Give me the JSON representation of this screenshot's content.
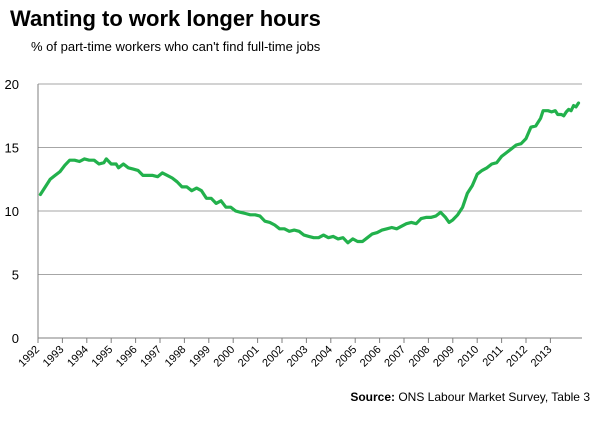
{
  "title": "Wanting to work longer hours",
  "subtitle": "% of part-time workers  who can't find full-time jobs",
  "source": {
    "label": "Source:",
    "text": "ONS Labour Market Survey, Table 3"
  },
  "colors": {
    "line": "#22b14c",
    "grid": "#a6a6a6",
    "axis": "#7f7f7f"
  },
  "chart_data": {
    "type": "line",
    "title": "Wanting to work longer hours",
    "subtitle": "% of part-time workers  who can't find full-time jobs",
    "xlabel": "",
    "ylabel": "",
    "ylim": [
      0,
      20
    ],
    "yticks": [
      0,
      5,
      10,
      15,
      20
    ],
    "xlim": [
      1992,
      2013.7
    ],
    "xticks": [
      "1992",
      "1993",
      "1994",
      "1995",
      "1996",
      "1997",
      "1998",
      "1999",
      "2000",
      "2001",
      "2002",
      "2003",
      "2004",
      "2005",
      "2006",
      "2007",
      "2008",
      "2009",
      "2010",
      "2011",
      "2012",
      "2013"
    ],
    "grid": true,
    "legend": "none",
    "series": [
      {
        "points": [
          [
            1992.1,
            11.3
          ],
          [
            1992.3,
            11.9
          ],
          [
            1992.5,
            12.5
          ],
          [
            1992.7,
            12.8
          ],
          [
            1992.9,
            13.1
          ],
          [
            1993.1,
            13.6
          ],
          [
            1993.3,
            14.0
          ],
          [
            1993.5,
            14.0
          ],
          [
            1993.7,
            13.9
          ],
          [
            1993.9,
            14.1
          ],
          [
            1994.1,
            14.0
          ],
          [
            1994.3,
            14.0
          ],
          [
            1994.5,
            13.7
          ],
          [
            1994.7,
            13.8
          ],
          [
            1994.8,
            14.1
          ],
          [
            1995.0,
            13.7
          ],
          [
            1995.2,
            13.7
          ],
          [
            1995.3,
            13.4
          ],
          [
            1995.5,
            13.7
          ],
          [
            1995.7,
            13.4
          ],
          [
            1995.9,
            13.3
          ],
          [
            1996.1,
            13.2
          ],
          [
            1996.3,
            12.8
          ],
          [
            1996.5,
            12.8
          ],
          [
            1996.7,
            12.8
          ],
          [
            1996.9,
            12.7
          ],
          [
            1997.1,
            13.0
          ],
          [
            1997.3,
            12.8
          ],
          [
            1997.5,
            12.6
          ],
          [
            1997.7,
            12.3
          ],
          [
            1997.9,
            11.9
          ],
          [
            1998.1,
            11.9
          ],
          [
            1998.3,
            11.6
          ],
          [
            1998.5,
            11.8
          ],
          [
            1998.7,
            11.6
          ],
          [
            1998.9,
            11.0
          ],
          [
            1999.1,
            11.0
          ],
          [
            1999.3,
            10.6
          ],
          [
            1999.5,
            10.8
          ],
          [
            1999.7,
            10.3
          ],
          [
            1999.9,
            10.3
          ],
          [
            2000.1,
            10.0
          ],
          [
            2000.3,
            9.9
          ],
          [
            2000.5,
            9.8
          ],
          [
            2000.7,
            9.7
          ],
          [
            2000.9,
            9.7
          ],
          [
            2001.1,
            9.6
          ],
          [
            2001.3,
            9.2
          ],
          [
            2001.5,
            9.1
          ],
          [
            2001.7,
            8.9
          ],
          [
            2001.9,
            8.6
          ],
          [
            2002.1,
            8.6
          ],
          [
            2002.3,
            8.4
          ],
          [
            2002.5,
            8.5
          ],
          [
            2002.7,
            8.4
          ],
          [
            2002.9,
            8.1
          ],
          [
            2003.1,
            8.0
          ],
          [
            2003.3,
            7.9
          ],
          [
            2003.5,
            7.9
          ],
          [
            2003.7,
            8.1
          ],
          [
            2003.9,
            7.9
          ],
          [
            2004.1,
            8.0
          ],
          [
            2004.3,
            7.8
          ],
          [
            2004.5,
            7.9
          ],
          [
            2004.7,
            7.5
          ],
          [
            2004.9,
            7.8
          ],
          [
            2005.1,
            7.6
          ],
          [
            2005.3,
            7.6
          ],
          [
            2005.5,
            7.9
          ],
          [
            2005.7,
            8.2
          ],
          [
            2005.9,
            8.3
          ],
          [
            2006.1,
            8.5
          ],
          [
            2006.3,
            8.6
          ],
          [
            2006.5,
            8.7
          ],
          [
            2006.7,
            8.6
          ],
          [
            2006.9,
            8.8
          ],
          [
            2007.1,
            9.0
          ],
          [
            2007.3,
            9.1
          ],
          [
            2007.5,
            9.0
          ],
          [
            2007.7,
            9.4
          ],
          [
            2007.9,
            9.5
          ],
          [
            2008.1,
            9.5
          ],
          [
            2008.3,
            9.6
          ],
          [
            2008.5,
            9.9
          ],
          [
            2008.7,
            9.5
          ],
          [
            2008.85,
            9.1
          ],
          [
            2009.0,
            9.3
          ],
          [
            2009.2,
            9.7
          ],
          [
            2009.4,
            10.3
          ],
          [
            2009.6,
            11.4
          ],
          [
            2009.8,
            12.0
          ],
          [
            2010.0,
            12.9
          ],
          [
            2010.2,
            13.2
          ],
          [
            2010.4,
            13.4
          ],
          [
            2010.6,
            13.7
          ],
          [
            2010.8,
            13.8
          ],
          [
            2011.0,
            14.3
          ],
          [
            2011.2,
            14.6
          ],
          [
            2011.4,
            14.9
          ],
          [
            2011.6,
            15.2
          ],
          [
            2011.8,
            15.3
          ],
          [
            2012.0,
            15.7
          ],
          [
            2012.2,
            16.6
          ],
          [
            2012.4,
            16.7
          ],
          [
            2012.6,
            17.3
          ],
          [
            2012.7,
            17.9
          ],
          [
            2012.9,
            17.9
          ],
          [
            2013.05,
            17.8
          ],
          [
            2013.2,
            17.9
          ],
          [
            2013.3,
            17.6
          ],
          [
            2013.45,
            17.6
          ],
          [
            2013.55,
            17.5
          ],
          [
            2013.65,
            17.8
          ],
          [
            2013.75,
            18.0
          ],
          [
            2013.85,
            17.9
          ],
          [
            2013.95,
            18.3
          ],
          [
            2014.05,
            18.2
          ],
          [
            2014.15,
            18.5
          ]
        ]
      }
    ]
  }
}
